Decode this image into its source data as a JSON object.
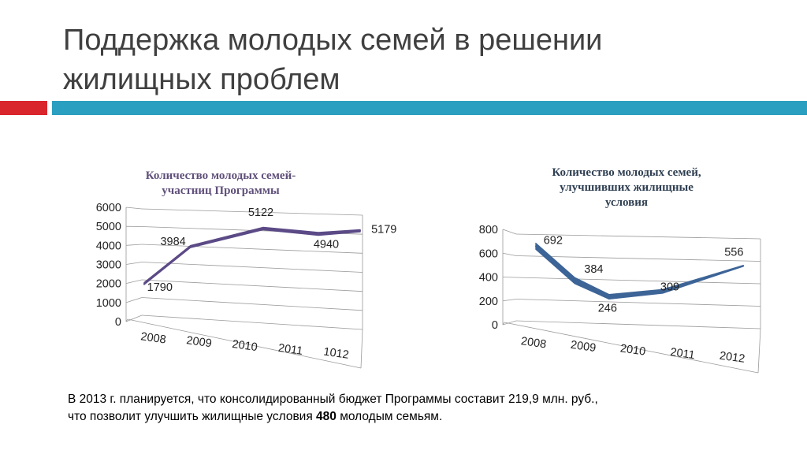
{
  "slide": {
    "title_line1": "Поддержка молодых семей в решении",
    "title_line2": "жилищных проблем",
    "colors": {
      "accent_red": "#d9262c",
      "accent_blue": "#2b9fbf"
    }
  },
  "chart_data": [
    {
      "type": "line",
      "title_line1": "Количество молодых семей-",
      "title_line2": "участниц Программы",
      "categories": [
        "2008",
        "2009",
        "2010",
        "2011",
        "1012"
      ],
      "values": [
        1790,
        3984,
        5122,
        4940,
        5179
      ],
      "ylim": [
        0,
        6000
      ],
      "yticks": [
        0,
        1000,
        2000,
        3000,
        4000,
        5000,
        6000
      ],
      "grid": true,
      "line_color": "#5b4a86",
      "title_color": "#5f4f7a"
    },
    {
      "type": "line",
      "title_line1": "Количество молодых семей,",
      "title_line2": "улучшивших жилищные",
      "title_line3": "условия",
      "categories": [
        "2008",
        "2009",
        "2010",
        "2011",
        "2012"
      ],
      "values": [
        692,
        384,
        246,
        309,
        556
      ],
      "ylim": [
        0,
        800
      ],
      "yticks": [
        0,
        200,
        400,
        600,
        800
      ],
      "grid": true,
      "line_color": "#3d6497",
      "title_color": "#2f3f52"
    }
  ],
  "footer": {
    "line1": "В 2013 г. планируется, что консолидированный бюджет Программы составит 219,9 млн. руб.,",
    "line2_before": "что позволит улучшить жилищные условия ",
    "line2_bold": "480",
    "line2_after": " молодым семьям."
  }
}
